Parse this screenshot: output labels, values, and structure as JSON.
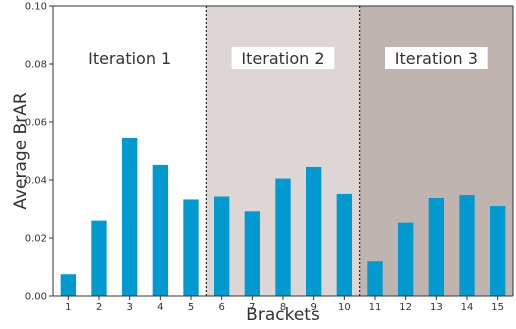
{
  "chart_data": {
    "type": "bar",
    "xlabel": "Brackets",
    "ylabel": "Average BrAR",
    "ylim": [
      0,
      0.1
    ],
    "yticks": [
      "0.00",
      "0.02",
      "0.04",
      "0.06",
      "0.08",
      "0.10"
    ],
    "categories": [
      "1",
      "2",
      "3",
      "4",
      "5",
      "6",
      "7",
      "8",
      "9",
      "10",
      "11",
      "12",
      "13",
      "14",
      "15"
    ],
    "values": [
      0.0075,
      0.026,
      0.0545,
      0.0452,
      0.0333,
      0.0343,
      0.0292,
      0.0405,
      0.0445,
      0.0352,
      0.012,
      0.0253,
      0.0338,
      0.0348,
      0.031
    ],
    "bar_color": "#0099d0",
    "regions": [
      {
        "label": "Iteration 1",
        "from": 1,
        "to": 5,
        "color": "#ffffff"
      },
      {
        "label": "Iteration 2",
        "from": 6,
        "to": 10,
        "color": "#ddd6d4"
      },
      {
        "label": "Iteration 3",
        "from": 11,
        "to": 15,
        "color": "#c0b4b0"
      }
    ]
  }
}
